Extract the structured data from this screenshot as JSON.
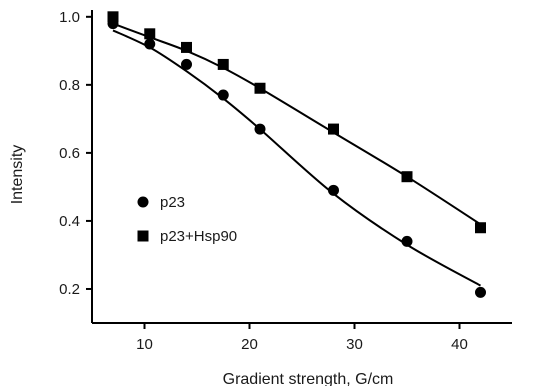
{
  "chart_data": {
    "type": "scatter",
    "xlabel": "Gradient strength, G/cm",
    "ylabel": "Intensity",
    "xlim": [
      5,
      45
    ],
    "ylim": [
      0.1,
      1.02
    ],
    "x_ticks": [
      10,
      20,
      30,
      40
    ],
    "y_ticks": [
      0.2,
      0.4,
      0.6,
      0.8,
      1.0
    ],
    "x_tick_labels": [
      "10",
      "20",
      "30",
      "40"
    ],
    "y_tick_labels": [
      "0.2",
      "0.4",
      "0.6",
      "0.8",
      "1.0"
    ],
    "grid": false,
    "legend_position": "left-center",
    "series": [
      {
        "name": "p23",
        "marker": "circle",
        "color": "#000000",
        "x": [
          7,
          10.5,
          14,
          17.5,
          21,
          28,
          35,
          42
        ],
        "y": [
          0.98,
          0.92,
          0.86,
          0.77,
          0.67,
          0.49,
          0.34,
          0.19
        ],
        "fit_y": [
          0.96,
          0.91,
          0.84,
          0.76,
          0.67,
          0.48,
          0.33,
          0.21
        ]
      },
      {
        "name": "p23+Hsp90",
        "marker": "square",
        "color": "#000000",
        "x": [
          7,
          10.5,
          14,
          17.5,
          21,
          28,
          35,
          42
        ],
        "y": [
          1.0,
          0.95,
          0.91,
          0.86,
          0.79,
          0.67,
          0.53,
          0.38
        ],
        "fit_y": [
          0.98,
          0.94,
          0.9,
          0.85,
          0.79,
          0.66,
          0.53,
          0.39
        ]
      }
    ]
  }
}
